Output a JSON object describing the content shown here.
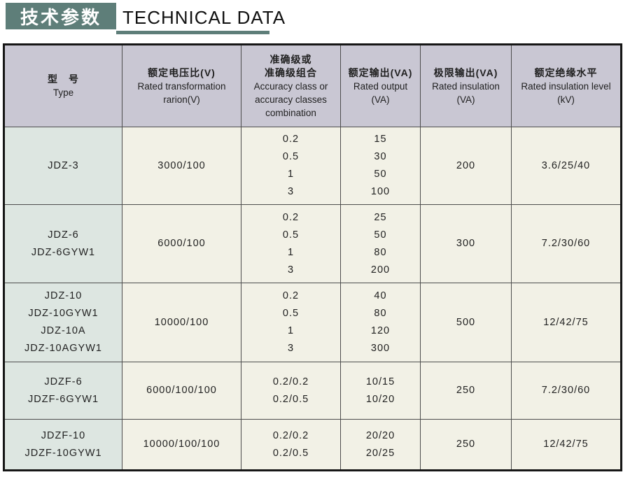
{
  "title": {
    "cn": "技术参数",
    "en": "TECHNICAL DATA"
  },
  "colors": {
    "accent_green": "#5e7e79",
    "header_bg": "#c9c7d3",
    "type_col_bg": "#dde6e1",
    "cell_bg": "#f2f1e6",
    "border_dark": "#161616",
    "grid_line": "#4d4d4d",
    "text": "#1f1f1f"
  },
  "table": {
    "columns": [
      {
        "cn_lines": [
          "型　号"
        ],
        "en_lines": [
          "Type"
        ]
      },
      {
        "cn_lines": [
          "额定电压比(V)"
        ],
        "en_lines": [
          "Rated transformation",
          "rarion(V)"
        ]
      },
      {
        "cn_lines": [
          "准确级或",
          "准确级组合"
        ],
        "en_lines": [
          "Accuracy class or",
          "accuracy classes",
          "combination"
        ]
      },
      {
        "cn_lines": [
          "额定输出(VA)"
        ],
        "en_lines": [
          "Rated output",
          "(VA)"
        ]
      },
      {
        "cn_lines": [
          "极限输出(VA)"
        ],
        "en_lines": [
          "Rated insulation",
          "(VA)"
        ]
      },
      {
        "cn_lines": [
          "额定绝缘水平"
        ],
        "en_lines": [
          "Rated insulation level",
          "(kV)"
        ]
      }
    ],
    "rows": [
      {
        "types": [
          "JDZ-3"
        ],
        "ratio": "3000/100",
        "accuracy": [
          "0.2",
          "0.5",
          "1",
          "3"
        ],
        "output": [
          "15",
          "30",
          "50",
          "100"
        ],
        "limit": "200",
        "insulation": "3.6/25/40"
      },
      {
        "types": [
          "JDZ-6",
          "JDZ-6GYW1"
        ],
        "ratio": "6000/100",
        "accuracy": [
          "0.2",
          "0.5",
          "1",
          "3"
        ],
        "output": [
          "25",
          "50",
          "80",
          "200"
        ],
        "limit": "300",
        "insulation": "7.2/30/60"
      },
      {
        "types": [
          "JDZ-10",
          "JDZ-10GYW1",
          "JDZ-10A",
          "JDZ-10AGYW1"
        ],
        "ratio": "10000/100",
        "accuracy": [
          "0.2",
          "0.5",
          "1",
          "3"
        ],
        "output": [
          "40",
          "80",
          "120",
          "300"
        ],
        "limit": "500",
        "insulation": "12/42/75"
      },
      {
        "types": [
          "JDZF-6",
          "JDZF-6GYW1"
        ],
        "ratio": "6000/100/100",
        "accuracy": [
          "0.2/0.2",
          "0.2/0.5"
        ],
        "output": [
          "10/15",
          "10/20"
        ],
        "limit": "250",
        "insulation": "7.2/30/60"
      },
      {
        "types": [
          "JDZF-10",
          "JDZF-10GYW1"
        ],
        "ratio": "10000/100/100",
        "accuracy": [
          "0.2/0.2",
          "0.2/0.5"
        ],
        "output": [
          "20/20",
          "20/25"
        ],
        "limit": "250",
        "insulation": "12/42/75"
      }
    ]
  }
}
